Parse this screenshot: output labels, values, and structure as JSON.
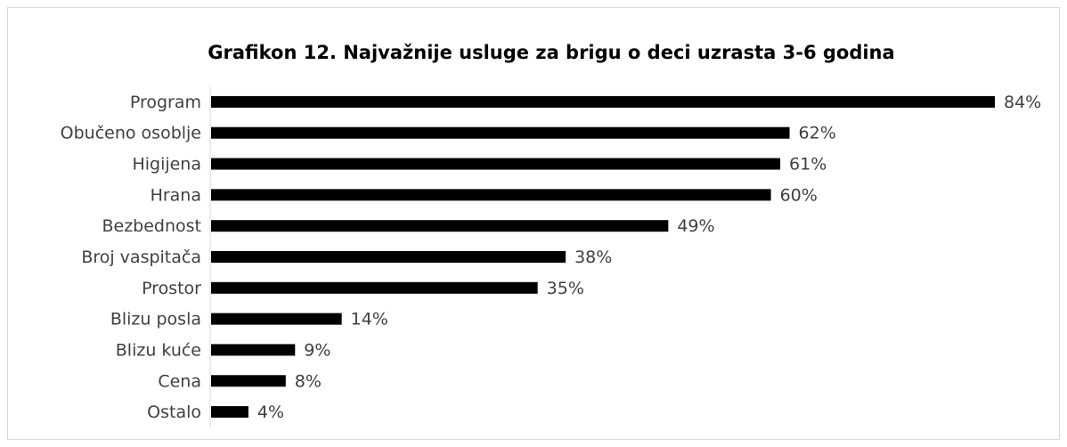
{
  "chart_data": {
    "type": "bar",
    "orientation": "horizontal",
    "title": "Grafikon 12. Najvažnije usluge za brigu o deci uzrasta 3-6 godina",
    "categories": [
      "Program",
      "Obučeno osoblje",
      "Higijena",
      "Hrana",
      "Bezbednost",
      "Broj vaspitača",
      "Prostor",
      "Blizu posla",
      "Blizu kuće",
      "Cena",
      "Ostalo"
    ],
    "values": [
      84,
      62,
      61,
      60,
      49,
      38,
      35,
      14,
      9,
      8,
      4
    ],
    "value_labels": [
      "84%",
      "62%",
      "61%",
      "60%",
      "49%",
      "38%",
      "35%",
      "14%",
      "9%",
      "8%",
      "4%"
    ],
    "color": "#000000"
  }
}
